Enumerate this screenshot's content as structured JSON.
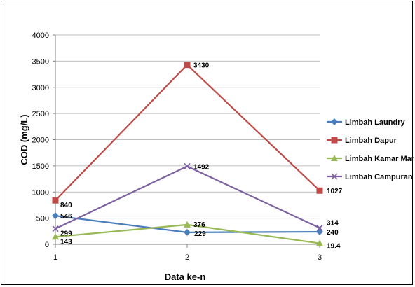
{
  "chart_data": {
    "type": "line",
    "title": "",
    "xlabel": "Data ke-n",
    "ylabel": "COD (mg/L)",
    "categories": [
      "1",
      "2",
      "3"
    ],
    "ylim": [
      0,
      4000
    ],
    "yticks": [
      "0",
      "500",
      "1000",
      "1500",
      "2000",
      "2500",
      "3000",
      "3500",
      "4000"
    ],
    "grid": "horizontal",
    "legend_position": "right",
    "series": [
      {
        "name": "Limbah Laundry",
        "values": [
          546,
          229,
          240
        ],
        "labels": [
          "546",
          "229",
          "240"
        ],
        "color": "#4a7ebb",
        "marker": "diamond"
      },
      {
        "name": "Limbah Dapur",
        "values": [
          840,
          3430,
          1027
        ],
        "labels": [
          "840",
          "3430",
          "1027"
        ],
        "color": "#be4b48",
        "marker": "square"
      },
      {
        "name": "Limbah Kamar Mandi",
        "values": [
          143,
          376,
          19.4
        ],
        "labels": [
          "143",
          "376",
          "19.4"
        ],
        "color": "#98b954",
        "marker": "triangle"
      },
      {
        "name": "Limbah Campuran",
        "values": [
          299,
          1492,
          314
        ],
        "labels": [
          "299",
          "1492",
          "314"
        ],
        "color": "#7d60a0",
        "marker": "x"
      }
    ]
  }
}
